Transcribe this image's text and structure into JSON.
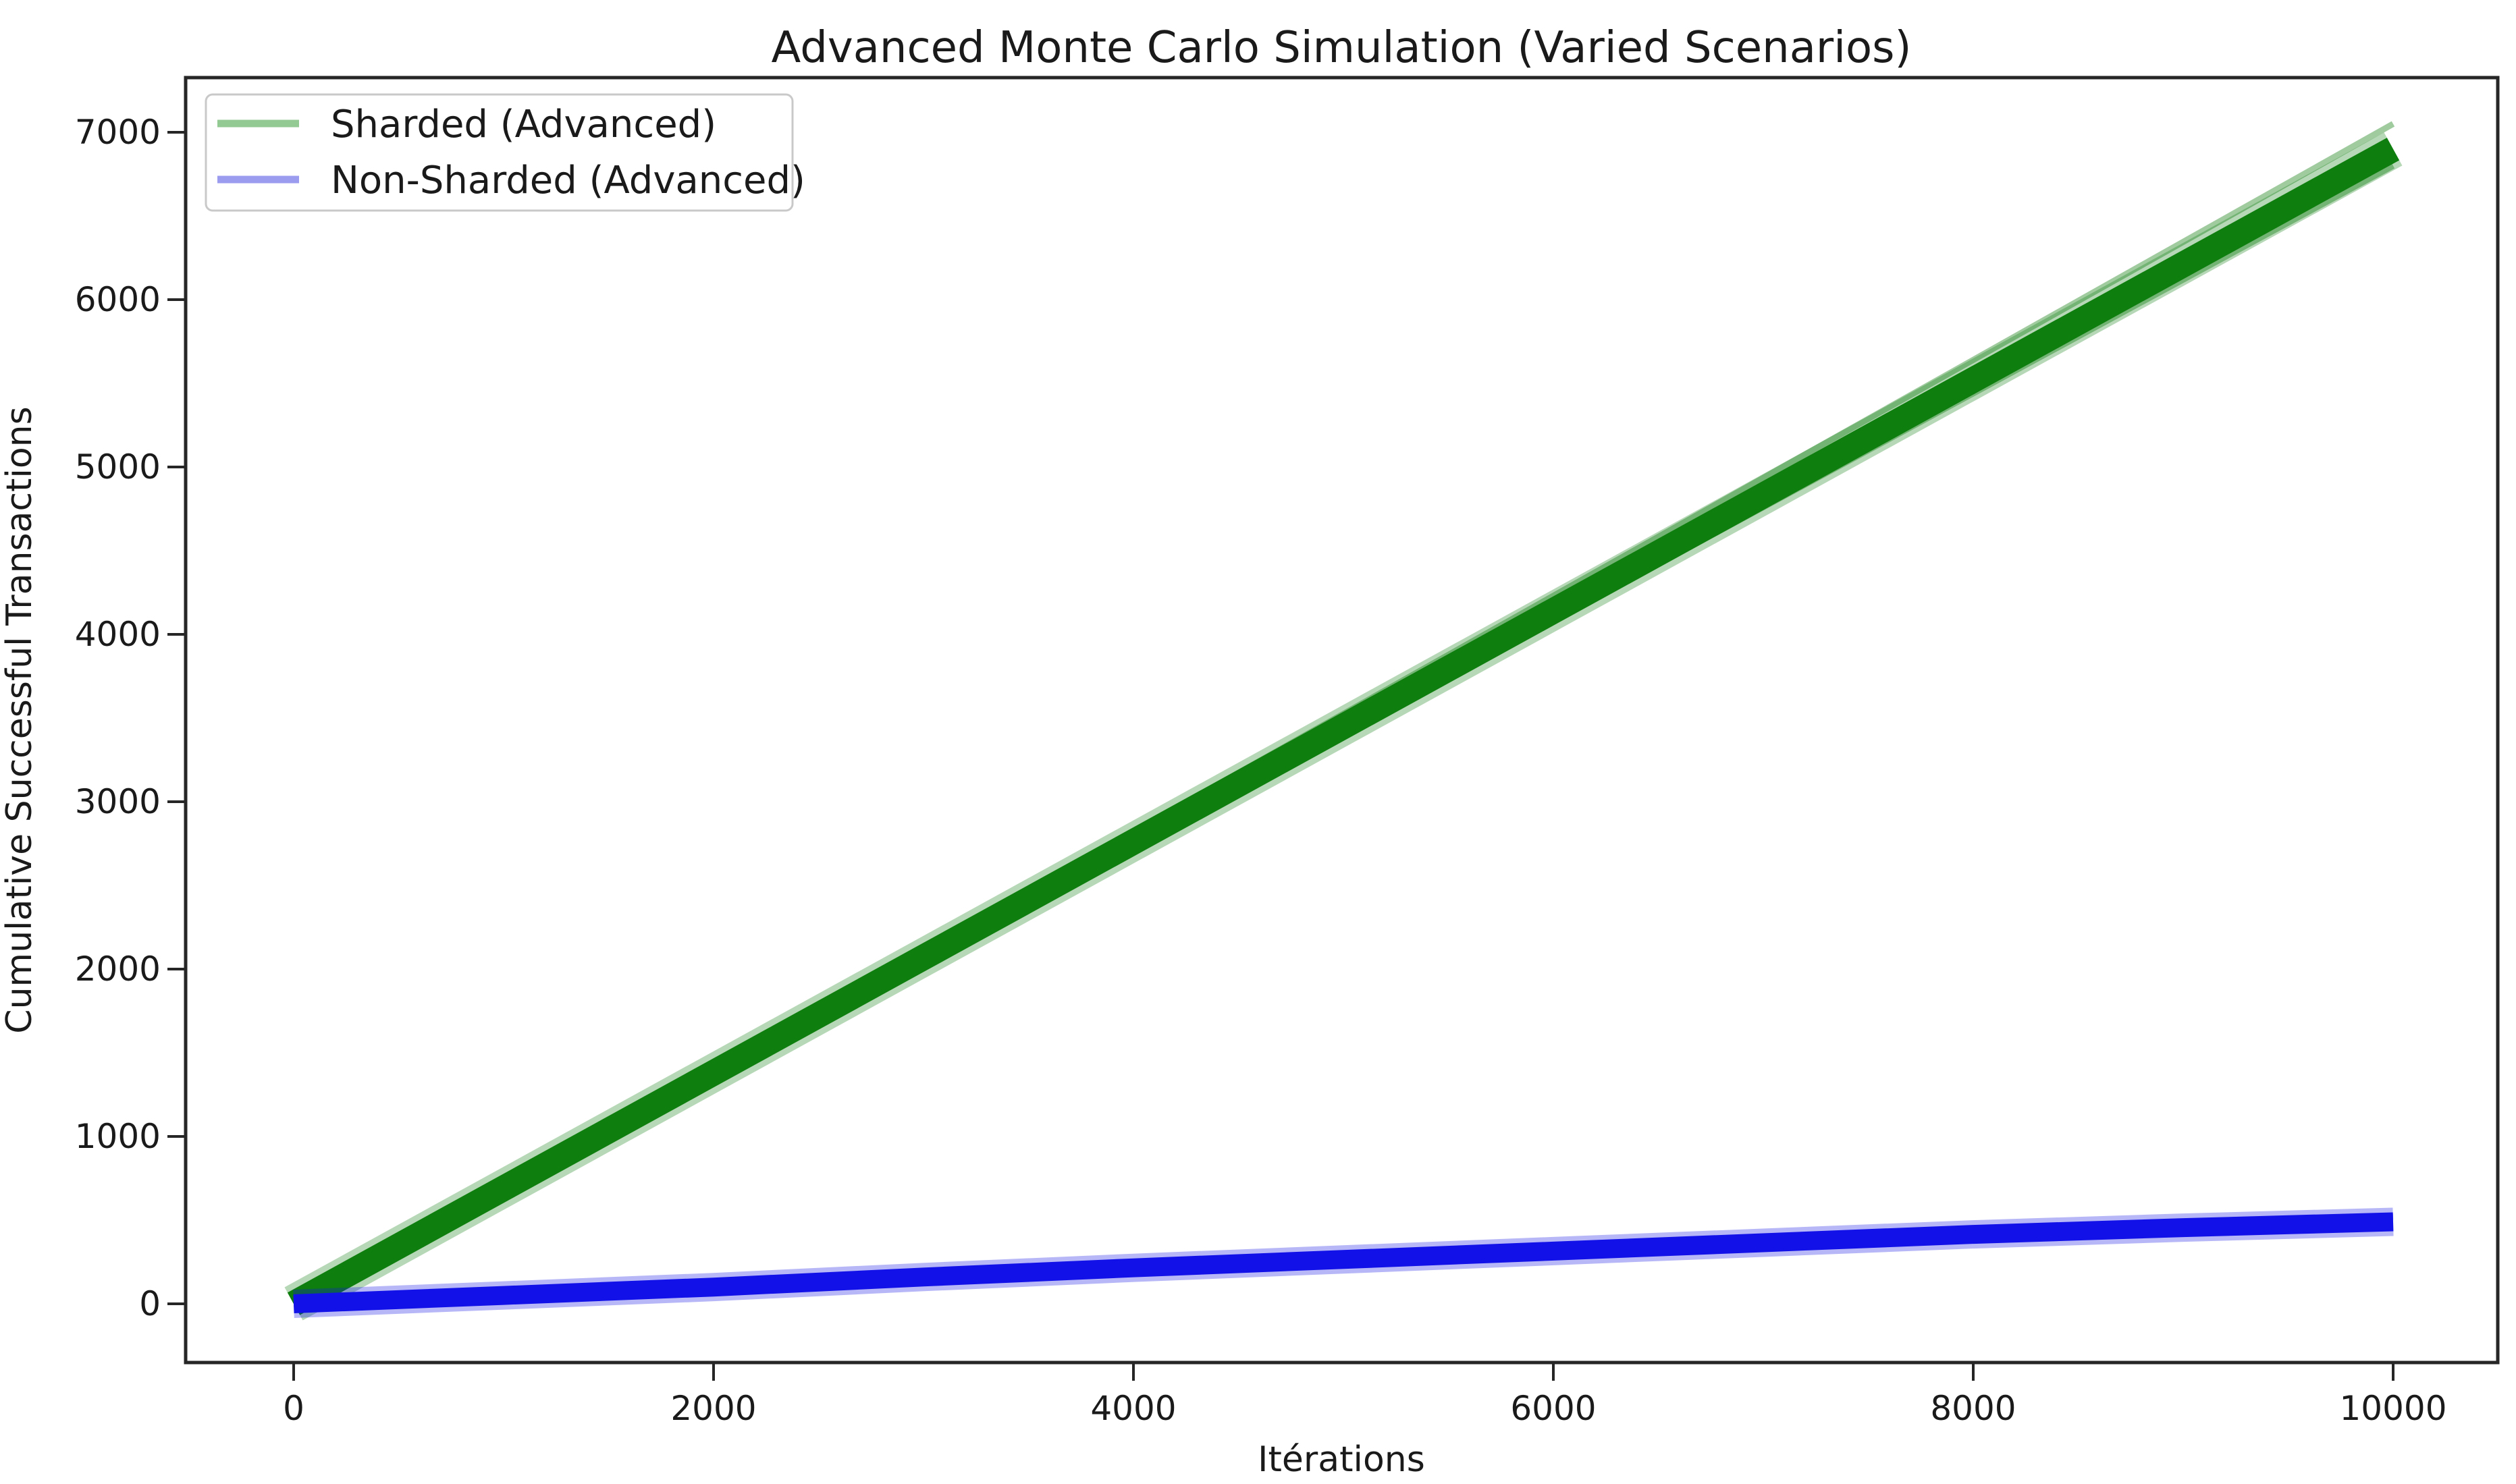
{
  "figure": {
    "title": "Advanced Monte Carlo Simulation (Varied Scenarios)",
    "background_color": "#ffffff"
  },
  "chart_data": {
    "type": "line",
    "title": "Advanced Monte Carlo Simulation (Varied Scenarios)",
    "xlabel": "Itérations",
    "ylabel": "Cumulative Successful Transactions",
    "x": [
      0,
      1000,
      2000,
      3000,
      4000,
      5000,
      6000,
      7000,
      8000,
      9000,
      10000
    ],
    "series": [
      {
        "name": "Sharded (Advanced)",
        "color": "#0e7e0e",
        "legend_color": "#93ca93",
        "values": [
          0,
          690,
          1380,
          2070,
          2760,
          3450,
          4140,
          4830,
          5520,
          6210,
          6900
        ],
        "final_range": [
          6800,
          7050
        ]
      },
      {
        "name": "Non-Sharded (Advanced)",
        "color": "#1212e8",
        "legend_color": "#9b9bf0",
        "values": [
          0,
          50,
          100,
          160,
          215,
          265,
          315,
          365,
          415,
          455,
          490
        ],
        "final_range": [
          455,
          520
        ]
      }
    ],
    "x_ticks": [
      0,
      2000,
      4000,
      6000,
      8000,
      10000
    ],
    "y_ticks": [
      0,
      1000,
      2000,
      3000,
      4000,
      5000,
      6000,
      7000
    ],
    "xlim": [
      -500,
      10500
    ],
    "ylim": [
      -350,
      7400
    ],
    "grid": false,
    "legend_position": "upper left"
  },
  "style": {
    "axis_color": "#262626",
    "text_color": "#1a1a1a",
    "legend_border_color": "#c9c9c9"
  }
}
